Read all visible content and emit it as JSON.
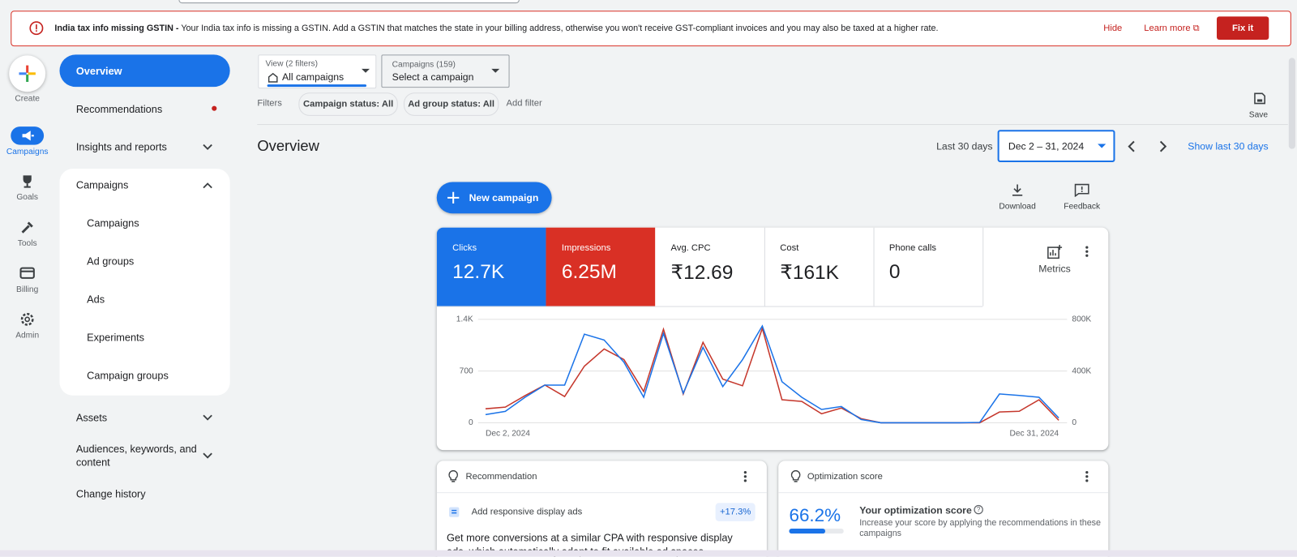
{
  "banner": {
    "title": "India tax info missing GSTIN -",
    "message": "Your India tax info is missing a GSTIN. Add a GSTIN that matches the state in your billing address, otherwise you won't receive GST-compliant invoices and you may also be taxed at a higher rate.",
    "hide": "Hide",
    "learn_more": "Learn more",
    "fix": "Fix it"
  },
  "rail": {
    "items": [
      "Create",
      "Campaigns",
      "Goals",
      "Tools",
      "Billing",
      "Admin"
    ]
  },
  "nav": {
    "items": [
      "Overview",
      "Recommendations",
      "Insights and reports"
    ],
    "section": "Campaigns",
    "section_items": [
      "Campaigns",
      "Ad groups",
      "Ads",
      "Experiments",
      "Campaign groups"
    ],
    "more_items": [
      "Assets",
      "Audiences, keywords, and content",
      "Change history"
    ]
  },
  "toolbar": {
    "view_label": "View (2 filters)",
    "view_value": "All campaigns",
    "campaigns_label": "Campaigns (159)",
    "campaigns_value": "Select a campaign",
    "filters": "Filters",
    "chips": [
      "Campaign status: All",
      "Ad group status: All"
    ],
    "add_filter": "Add filter",
    "save": "Save"
  },
  "header": {
    "title": "Overview",
    "range_label": "Last 30 days",
    "range": "Dec 2 – 31, 2024",
    "show_last": "Show last 30 days"
  },
  "actions": {
    "new_campaign": "New campaign",
    "download": "Download",
    "feedback": "Feedback"
  },
  "metrics": {
    "tiles": [
      {
        "label": "Clicks",
        "value": "12.7K"
      },
      {
        "label": "Impressions",
        "value": "6.25M"
      },
      {
        "label": "Avg. CPC",
        "value": "₹12.69"
      },
      {
        "label": "Cost",
        "value": "₹161K"
      },
      {
        "label": "Phone calls",
        "value": "0"
      }
    ],
    "more": "Metrics"
  },
  "chart_data": {
    "type": "line",
    "x": [
      "Dec 2, 2024",
      null,
      null,
      null,
      null,
      null,
      null,
      null,
      null,
      null,
      null,
      null,
      null,
      null,
      null,
      null,
      null,
      null,
      null,
      null,
      null,
      null,
      null,
      null,
      null,
      null,
      null,
      null,
      null,
      "Dec 31, 2024"
    ],
    "series": [
      {
        "color": "#1a73e8",
        "values": [
          110,
          155,
          345,
          510,
          510,
          1200,
          1120,
          820,
          345,
          1210,
          400,
          1020,
          490,
          855,
          1310,
          555,
          345,
          180,
          220,
          45,
          0,
          0,
          0,
          0,
          0,
          5,
          390,
          370,
          345,
          65
        ]
      },
      {
        "color": "#c5372c",
        "axis": "y2",
        "values": [
          108000,
          121000,
          210000,
          292000,
          203000,
          438000,
          571000,
          489000,
          241000,
          724000,
          222000,
          622000,
          337000,
          286000,
          730000,
          178000,
          165000,
          70000,
          114000,
          32000,
          0,
          0,
          0,
          0,
          0,
          0,
          83000,
          89000,
          178000,
          19000
        ]
      }
    ],
    "ylim": [
      0,
      1400
    ],
    "yticks": [
      0,
      700,
      {
        "value": 1400,
        "label": "1.4K"
      }
    ],
    "y2lim": [
      0,
      800000
    ],
    "y2ticks": [
      0,
      {
        "value": 400000,
        "label": "400K"
      },
      {
        "value": 800000,
        "label": "800K"
      }
    ],
    "grid": true
  },
  "recommendation": {
    "title": "Recommendation",
    "item": "Add responsive display ads",
    "uplift": "+17.3%",
    "body": "Get more conversions at a similar CPA with responsive display ads, which automatically adapt to fit available ad spaces."
  },
  "optimization": {
    "title": "Optimization score",
    "score": 66.2,
    "score_label": "66.2%",
    "heading": "Your optimization score",
    "description": "Increase your score by applying the recommendations in these campaigns"
  }
}
